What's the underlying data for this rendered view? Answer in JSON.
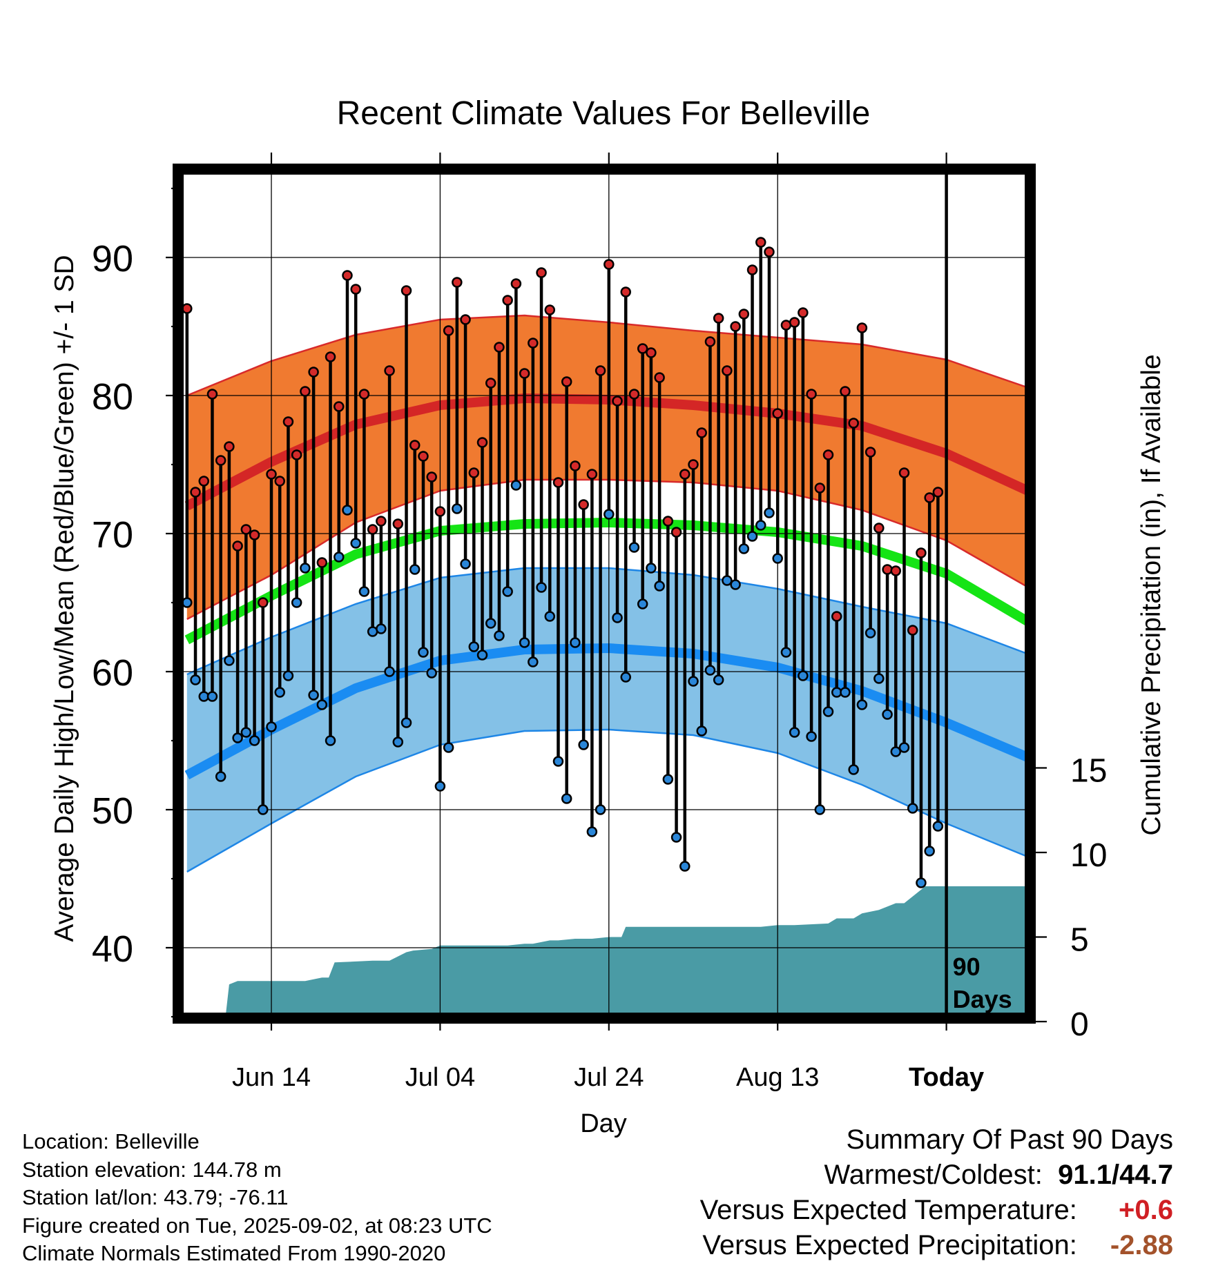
{
  "chart_data": {
    "type": "line",
    "title": "Recent Climate Values For Belleville",
    "xlabel": "Day",
    "ylabel": "Average Daily High/Low/Mean (Red/Blue/Green) +/- 1 SD",
    "y2label": "Cumulative Precipitation (in), If Available",
    "xlim": [
      -10,
      90
    ],
    "ylim": [
      35,
      96
    ],
    "y2lim": [
      0,
      23
    ],
    "yticks": [
      40,
      50,
      60,
      70,
      80,
      90
    ],
    "y2ticks": [
      0,
      5,
      10,
      15
    ],
    "x_tick_labels": [
      {
        "day": 0,
        "label": "Jun 14"
      },
      {
        "day": 20,
        "label": "Jul 04"
      },
      {
        "day": 40,
        "label": "Jul 24"
      },
      {
        "day": 60,
        "label": "Aug 13"
      },
      {
        "day": 80,
        "label": "Today"
      }
    ],
    "today_marker": {
      "day": 80,
      "label_line1": "90",
      "label_line2": "Days"
    },
    "normals": {
      "x": [
        -10,
        0,
        10,
        20,
        30,
        40,
        50,
        60,
        70,
        80,
        90
      ],
      "normal_high": [
        72.0,
        75.2,
        77.9,
        79.3,
        79.8,
        79.7,
        79.3,
        78.7,
        77.8,
        75.8,
        73.0
      ],
      "normal_high_upper": [
        80.0,
        82.5,
        84.4,
        85.5,
        85.8,
        85.3,
        84.7,
        84.2,
        83.7,
        82.6,
        80.5
      ],
      "normal_high_lower": [
        63.8,
        67.0,
        70.8,
        73.1,
        73.9,
        73.9,
        73.7,
        73.1,
        71.7,
        69.5,
        66.0
      ],
      "normal_mean": [
        62.3,
        65.5,
        68.5,
        70.2,
        70.7,
        70.8,
        70.6,
        70.1,
        69.1,
        67.1,
        63.5
      ],
      "normal_low": [
        52.5,
        55.8,
        58.8,
        60.8,
        61.6,
        61.7,
        61.3,
        60.3,
        58.6,
        56.3,
        53.7
      ],
      "normal_low_upper": [
        59.8,
        62.5,
        64.9,
        66.8,
        67.5,
        67.5,
        67.0,
        66.0,
        64.7,
        63.5,
        61.2
      ],
      "normal_low_lower": [
        45.5,
        49.0,
        52.4,
        54.7,
        55.7,
        55.8,
        55.4,
        54.1,
        51.8,
        49.0,
        46.5
      ]
    },
    "series": [
      {
        "name": "Daily High",
        "color": "#cc2222",
        "x": [
          -10,
          -9,
          -8,
          -7,
          -6,
          -5,
          -4,
          -3,
          -2,
          -1,
          0,
          1,
          2,
          3,
          4,
          5,
          6,
          7,
          8,
          9,
          10,
          11,
          12,
          13,
          14,
          15,
          16,
          17,
          18,
          19,
          20,
          21,
          22,
          23,
          24,
          25,
          26,
          27,
          28,
          29,
          30,
          31,
          32,
          33,
          34,
          35,
          36,
          37,
          38,
          39,
          40,
          41,
          42,
          43,
          44,
          45,
          46,
          47,
          48,
          49,
          50,
          51,
          52,
          53,
          54,
          55,
          56,
          57,
          58,
          59,
          60,
          61,
          62,
          63,
          64,
          65,
          66,
          67,
          68,
          69,
          70,
          71,
          72,
          73,
          74,
          75,
          76,
          77,
          78,
          79
        ],
        "values": [
          86.3,
          73.0,
          73.8,
          80.1,
          75.3,
          76.3,
          69.1,
          70.3,
          69.9,
          65.0,
          74.3,
          73.8,
          78.1,
          75.7,
          80.3,
          81.7,
          67.9,
          82.8,
          79.2,
          88.7,
          87.7,
          80.1,
          70.3,
          70.9,
          81.8,
          70.7,
          87.6,
          76.4,
          75.6,
          74.1,
          71.6,
          84.7,
          88.2,
          85.5,
          74.4,
          76.6,
          80.9,
          83.5,
          86.9,
          88.1,
          81.6,
          83.8,
          88.9,
          86.2,
          73.7,
          81.0,
          74.9,
          72.1,
          74.3,
          81.8,
          89.5,
          79.6,
          87.5,
          80.1,
          83.4,
          83.1,
          81.3,
          70.9,
          70.1,
          74.3,
          75.0,
          77.3,
          83.9,
          85.6,
          81.8,
          85.0,
          85.9,
          89.1,
          91.1,
          90.4,
          78.7,
          85.1,
          85.3,
          86.0,
          80.1,
          73.3,
          75.7,
          64.0,
          80.3,
          78.0,
          84.9,
          75.9,
          70.4,
          67.4,
          67.3,
          74.4,
          63.0,
          68.6,
          72.6,
          73.0
        ]
      },
      {
        "name": "Daily Low",
        "color": "#1e7fd6",
        "x": [
          -10,
          -9,
          -8,
          -7,
          -6,
          -5,
          -4,
          -3,
          -2,
          -1,
          0,
          1,
          2,
          3,
          4,
          5,
          6,
          7,
          8,
          9,
          10,
          11,
          12,
          13,
          14,
          15,
          16,
          17,
          18,
          19,
          20,
          21,
          22,
          23,
          24,
          25,
          26,
          27,
          28,
          29,
          30,
          31,
          32,
          33,
          34,
          35,
          36,
          37,
          38,
          39,
          40,
          41,
          42,
          43,
          44,
          45,
          46,
          47,
          48,
          49,
          50,
          51,
          52,
          53,
          54,
          55,
          56,
          57,
          58,
          59,
          60,
          61,
          62,
          63,
          64,
          65,
          66,
          67,
          68,
          69,
          70,
          71,
          72,
          73,
          74,
          75,
          76,
          77,
          78,
          79
        ],
        "values": [
          65.0,
          59.4,
          58.2,
          58.2,
          52.4,
          60.8,
          55.2,
          55.6,
          55.0,
          50.0,
          56.0,
          58.5,
          59.7,
          65.0,
          67.5,
          58.3,
          57.6,
          55.0,
          68.3,
          71.7,
          69.3,
          65.8,
          62.9,
          63.1,
          60.0,
          54.9,
          56.3,
          67.4,
          61.4,
          59.9,
          51.7,
          54.5,
          71.8,
          67.8,
          61.8,
          61.2,
          63.5,
          62.6,
          65.8,
          73.5,
          62.1,
          60.7,
          66.1,
          64.0,
          53.5,
          50.8,
          62.1,
          54.7,
          48.4,
          50.0,
          71.4,
          63.9,
          59.6,
          69.0,
          64.9,
          67.5,
          66.2,
          52.2,
          48.0,
          45.9,
          59.3,
          55.7,
          60.1,
          59.4,
          66.6,
          66.3,
          68.9,
          69.8,
          70.6,
          71.5,
          68.2,
          61.4,
          55.6,
          59.7,
          55.3,
          50.0,
          57.1,
          58.5,
          58.5,
          52.9,
          57.6,
          62.8,
          59.5,
          56.9,
          54.2,
          54.5,
          50.1,
          44.7,
          47.0,
          48.8
        ]
      },
      {
        "name": "Cumulative Precipitation",
        "color": "#4a9ba5",
        "x": [
          -10,
          -5.5,
          -5,
          -4,
          -3,
          -2,
          1,
          3,
          4,
          6,
          6.8,
          7.5,
          12,
          14,
          16,
          16.8,
          19,
          20,
          23,
          28,
          30,
          31,
          33,
          34,
          36,
          38,
          40,
          41.5,
          42,
          44,
          48,
          52,
          58,
          60,
          62,
          66,
          67,
          69,
          70,
          72,
          74,
          75,
          77.5,
          78.5,
          80,
          90
        ],
        "values": [
          0,
          0,
          2.2,
          2.4,
          2.4,
          2.4,
          2.4,
          2.4,
          2.4,
          2.6,
          2.6,
          3.5,
          3.6,
          3.6,
          4.1,
          4.2,
          4.3,
          4.5,
          4.5,
          4.5,
          4.6,
          4.6,
          4.8,
          4.8,
          4.9,
          4.9,
          5.0,
          5.0,
          5.6,
          5.6,
          5.6,
          5.6,
          5.6,
          5.7,
          5.7,
          5.8,
          6.1,
          6.1,
          6.4,
          6.6,
          7.0,
          7.0,
          8.0,
          8.0,
          8.0,
          8.0
        ]
      }
    ]
  },
  "summary": {
    "title": "Summary Of Past 90 Days",
    "rows": [
      {
        "label": "Warmest/Coldest:",
        "value": "91.1/44.7"
      },
      {
        "label": "Versus Expected Temperature:",
        "value": "+0.6"
      },
      {
        "label": "Versus Expected Precipitation:",
        "value": "-2.88"
      }
    ],
    "colors": {
      "temperature": "#d01f24",
      "precipitation": "#a3522b"
    }
  },
  "footer": {
    "lines": [
      "Location: Belleville",
      "Station elevation: 144.78 m",
      "Station lat/lon: 43.79; -76.11",
      "Figure created on Tue, 2025-09-02, at 08:23 UTC",
      "Climate Normals Estimated From 1990-2020"
    ]
  }
}
